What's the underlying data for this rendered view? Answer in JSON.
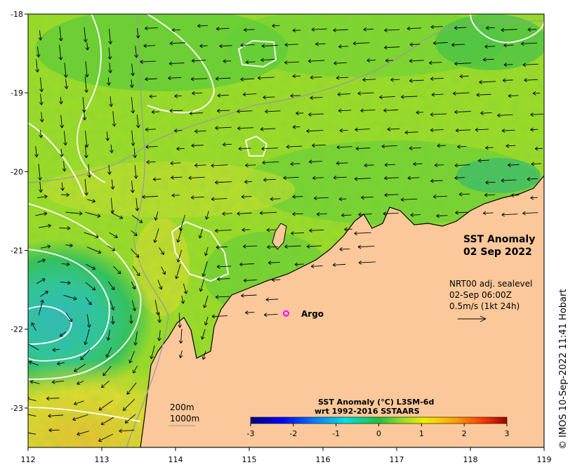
{
  "title": {
    "line1": "SST Anomaly",
    "line2": "02 Sep 2022"
  },
  "current_info": {
    "line1": "NRT00 adj. sealevel",
    "line2": "02-Sep 06:00Z",
    "line3": "0.5m/s (1kt 24h)"
  },
  "bathymetry": {
    "label1": "200m",
    "label2": "1000m"
  },
  "argo": {
    "label": "Argo",
    "color": "#ff00ff",
    "lon": 115.5,
    "lat": -21.8
  },
  "colorbar": {
    "title_line1": "SST Anomaly (°C) L3SM-6d",
    "title_line2": "wrt 1992-2016 SSTAARS",
    "min": -3,
    "max": 3,
    "ticks": [
      "-3",
      "-2",
      "-1",
      "0",
      "1",
      "2",
      "3"
    ]
  },
  "axes": {
    "lon_range": [
      112,
      119
    ],
    "lat_range": [
      -23.5,
      -18
    ],
    "x_ticks": [
      "112",
      "113",
      "114",
      "115",
      "116",
      "117",
      "118",
      "119"
    ],
    "y_ticks": [
      "-18",
      "-19",
      "-20",
      "-21",
      "-22",
      "-23"
    ]
  },
  "credit": "© IMOS 10-Sep-2022 11:41 Hobart",
  "colors": {
    "land": "#fac89a",
    "sst_base": "#9edc28",
    "coast": "#000000",
    "contour": "#ffffff",
    "bathy_line": "#9a9a9a"
  }
}
